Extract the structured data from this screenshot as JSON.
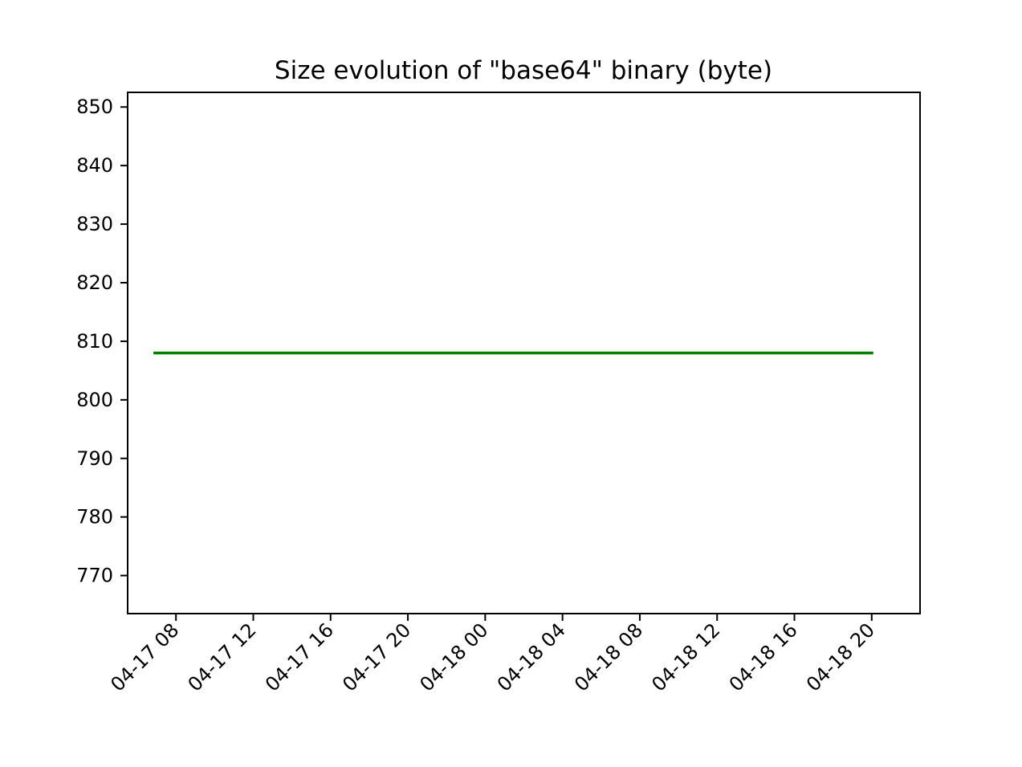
{
  "chart_data": {
    "type": "line",
    "title": "Size evolution of \"base64\" binary (byte)",
    "xlabel": "",
    "ylabel": "",
    "x_axis_type": "datetime",
    "xlim": [
      "2019-04-17T05:30",
      "2019-04-18T22:30"
    ],
    "ylim": [
      763.5,
      852.5
    ],
    "x_ticks": [
      {
        "value": "2019-04-17T08:00",
        "label": "04-17 08"
      },
      {
        "value": "2019-04-17T12:00",
        "label": "04-17 12"
      },
      {
        "value": "2019-04-17T16:00",
        "label": "04-17 16"
      },
      {
        "value": "2019-04-17T20:00",
        "label": "04-17 20"
      },
      {
        "value": "2019-04-18T00:00",
        "label": "04-18 00"
      },
      {
        "value": "2019-04-18T04:00",
        "label": "04-18 04"
      },
      {
        "value": "2019-04-18T08:00",
        "label": "04-18 08"
      },
      {
        "value": "2019-04-18T12:00",
        "label": "04-18 12"
      },
      {
        "value": "2019-04-18T16:00",
        "label": "04-18 16"
      },
      {
        "value": "2019-04-18T20:00",
        "label": "04-18 20"
      }
    ],
    "y_ticks": [
      770,
      780,
      790,
      800,
      810,
      820,
      830,
      840,
      850
    ],
    "grid": false,
    "series": [
      {
        "color": "#008000",
        "points": [
          {
            "x": "2019-04-17T06:50",
            "y": 808
          },
          {
            "x": "2019-04-18T20:05",
            "y": 808
          }
        ]
      }
    ]
  }
}
